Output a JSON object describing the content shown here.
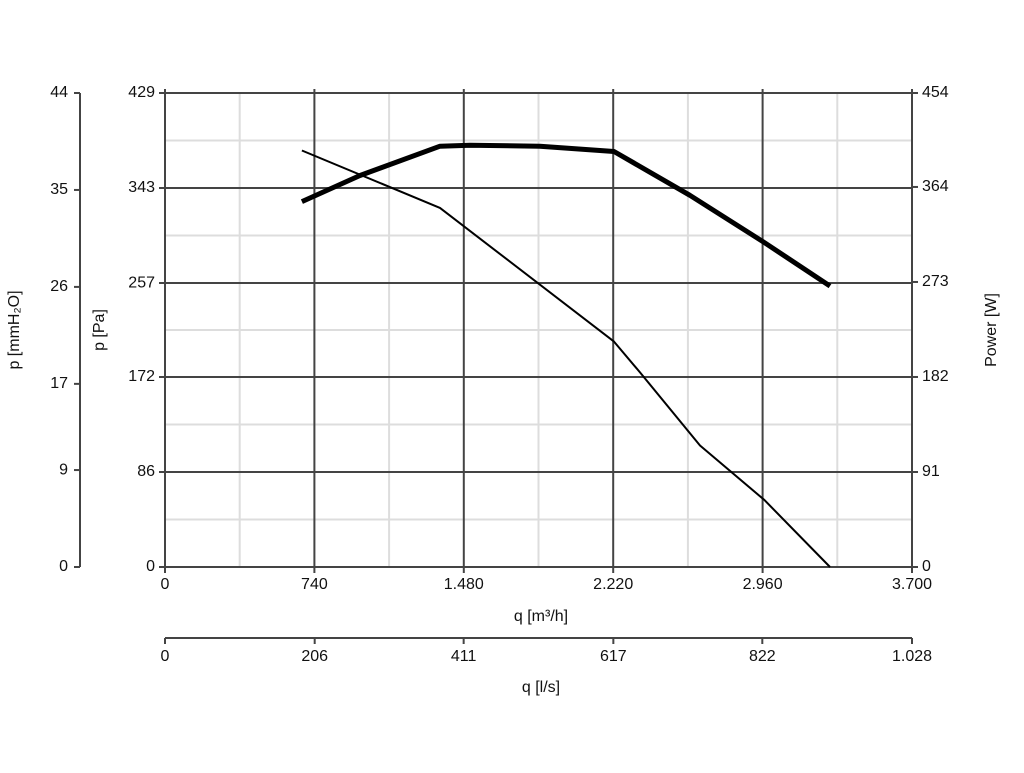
{
  "chart_data": {
    "type": "line",
    "xlabel": "q [m³/h]",
    "xlim": [
      0,
      3700
    ],
    "xticks": [
      0,
      740,
      {
        "value": 1480,
        "label": "1.480"
      },
      {
        "value": 2220,
        "label": "2.220"
      },
      {
        "value": 2960,
        "label": "2.960"
      },
      {
        "value": 3700,
        "label": "3.700"
      }
    ],
    "x2label": "q [l/s]",
    "x2lim": [
      0,
      1028
    ],
    "x2ticks": [
      0,
      206,
      411,
      617,
      822,
      {
        "value": 1028,
        "label": "1.028"
      }
    ],
    "ylabel": "p [Pa]",
    "ylim": [
      0,
      429
    ],
    "yticks": [
      0,
      86,
      172,
      257,
      343,
      429
    ],
    "y3label": "p [mmH₂O]",
    "y3lim": [
      0,
      44
    ],
    "y3ticks": [
      0,
      9,
      17,
      26,
      35,
      44
    ],
    "y2label": "Power [W]",
    "y2lim": [
      0,
      454
    ],
    "y2ticks": [
      0,
      91,
      182,
      273,
      364,
      454
    ],
    "grid": true,
    "minor_grid": true,
    "series": [
      {
        "color": "#000000",
        "width": 2,
        "axis": "y",
        "x": [
          678,
          1362,
          2224,
          2353,
          2650,
          2967,
          3294
        ],
        "values": [
          377,
          325,
          204,
          176,
          110,
          61,
          0
        ]
      },
      {
        "color": "#000000",
        "width": 5,
        "axis": "y2",
        "x": [
          678,
          966,
          1362,
          1511,
          1857,
          2224,
          2600,
          2967,
          3294
        ],
        "values": [
          350,
          375,
          403,
          404,
          403,
          398,
          356,
          311,
          269
        ]
      }
    ]
  }
}
